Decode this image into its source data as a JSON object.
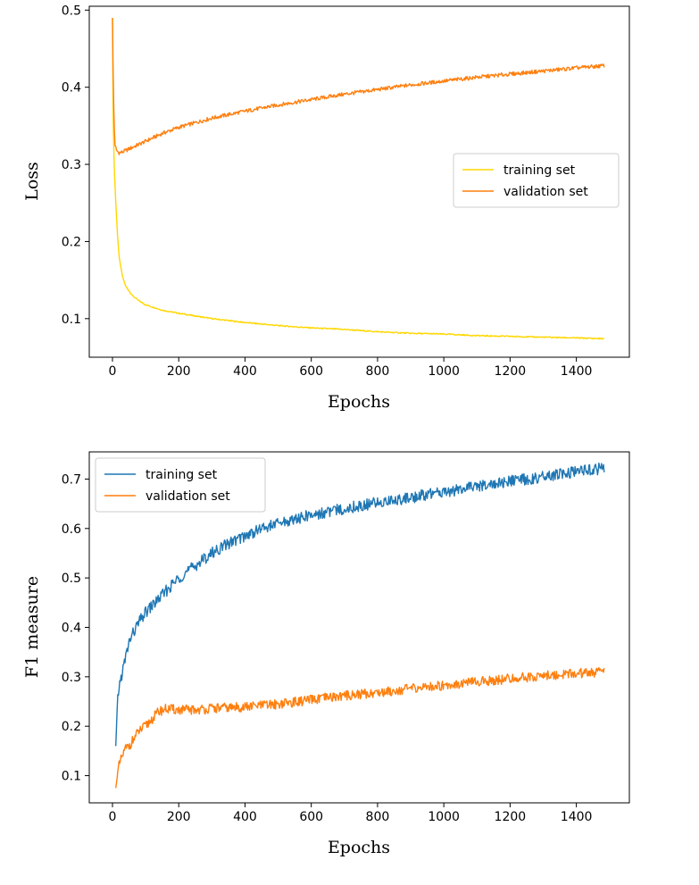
{
  "chart_data": [
    {
      "type": "line",
      "title": "",
      "xlabel": "Epochs",
      "ylabel": "Loss",
      "xlim": [
        -70,
        1560
      ],
      "ylim": [
        0.05,
        0.505
      ],
      "xticks": [
        0,
        200,
        400,
        600,
        800,
        1000,
        1200,
        1400
      ],
      "yticks": [
        0.1,
        0.2,
        0.3,
        0.4,
        0.5
      ],
      "legend_position": "center-right",
      "series": [
        {
          "name": "training set",
          "color": "#FFD700",
          "x": [
            0,
            2,
            5,
            10,
            15,
            20,
            30,
            40,
            60,
            80,
            100,
            150,
            200,
            300,
            400,
            500,
            600,
            700,
            800,
            900,
            1000,
            1100,
            1200,
            1300,
            1400,
            1485
          ],
          "y": [
            0.49,
            0.36,
            0.3,
            0.25,
            0.21,
            0.18,
            0.155,
            0.142,
            0.13,
            0.123,
            0.118,
            0.111,
            0.107,
            0.1,
            0.095,
            0.091,
            0.088,
            0.086,
            0.083,
            0.081,
            0.08,
            0.078,
            0.077,
            0.076,
            0.075,
            0.074
          ]
        },
        {
          "name": "validation set",
          "color": "#FF7F0E",
          "x": [
            0,
            2,
            5,
            8,
            12,
            20,
            30,
            50,
            100,
            150,
            200,
            300,
            400,
            500,
            600,
            700,
            800,
            900,
            1000,
            1100,
            1200,
            1300,
            1400,
            1485
          ],
          "y": [
            0.49,
            0.42,
            0.35,
            0.325,
            0.318,
            0.315,
            0.316,
            0.32,
            0.33,
            0.34,
            0.348,
            0.36,
            0.369,
            0.377,
            0.384,
            0.391,
            0.397,
            0.403,
            0.408,
            0.413,
            0.417,
            0.421,
            0.425,
            0.428
          ]
        }
      ]
    },
    {
      "type": "line",
      "title": "",
      "xlabel": "Epochs",
      "ylabel": "F1 measure",
      "xlim": [
        -70,
        1560
      ],
      "ylim": [
        0.045,
        0.755
      ],
      "xticks": [
        0,
        200,
        400,
        600,
        800,
        1000,
        1200,
        1400
      ],
      "yticks": [
        0.1,
        0.2,
        0.3,
        0.4,
        0.5,
        0.6,
        0.7
      ],
      "legend_position": "top-left",
      "series": [
        {
          "name": "training set",
          "color": "#1F77B4",
          "x": [
            10,
            15,
            20,
            30,
            40,
            50,
            60,
            80,
            100,
            150,
            200,
            250,
            300,
            350,
            400,
            450,
            500,
            600,
            700,
            800,
            900,
            1000,
            1100,
            1200,
            1300,
            1400,
            1485
          ],
          "y": [
            0.16,
            0.25,
            0.28,
            0.31,
            0.34,
            0.37,
            0.385,
            0.41,
            0.43,
            0.465,
            0.5,
            0.525,
            0.55,
            0.57,
            0.585,
            0.6,
            0.61,
            0.627,
            0.64,
            0.652,
            0.663,
            0.674,
            0.685,
            0.695,
            0.704,
            0.714,
            0.722
          ]
        },
        {
          "name": "validation set",
          "color": "#FF7F0E",
          "x": [
            10,
            15,
            20,
            30,
            40,
            50,
            60,
            80,
            100,
            120,
            140,
            160,
            180,
            200,
            250,
            300,
            400,
            500,
            600,
            700,
            800,
            900,
            1000,
            1100,
            1200,
            1300,
            1400,
            1485
          ],
          "y": [
            0.075,
            0.1,
            0.12,
            0.14,
            0.155,
            0.16,
            0.17,
            0.19,
            0.2,
            0.215,
            0.23,
            0.235,
            0.234,
            0.233,
            0.233,
            0.236,
            0.239,
            0.245,
            0.253,
            0.262,
            0.268,
            0.276,
            0.283,
            0.29,
            0.296,
            0.302,
            0.307,
            0.31
          ]
        }
      ]
    }
  ]
}
